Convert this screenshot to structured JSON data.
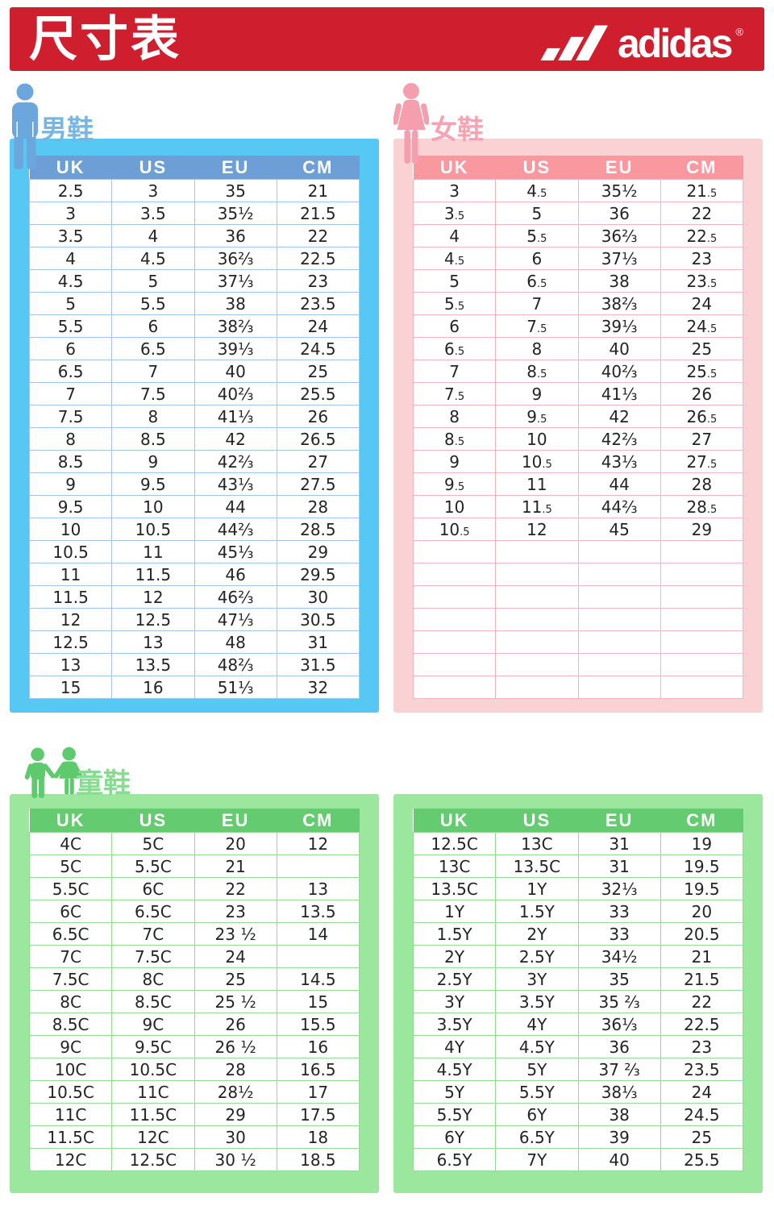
{
  "header": {
    "title": "尺寸表",
    "brand": "adidas",
    "reg_mark": "®"
  },
  "colors": {
    "header_red": "#cf1f2f",
    "men_panel": "#57c7f3",
    "men_table_header": "#6d9fd6",
    "men_accent": "#77b5e3",
    "women_panel": "#fbd2d3",
    "women_table_header": "#f9989f",
    "women_accent": "#f8a3b1",
    "kids_panel": "#9ce79e",
    "kids_table_header": "#65cb70",
    "kids_accent": "#87dc92",
    "cell_text": "#242424"
  },
  "sections": {
    "men": {
      "label": "男鞋",
      "columns": [
        "UK",
        "US",
        "EU",
        "CM"
      ],
      "rows": [
        [
          "2.5",
          "3",
          "35",
          "21"
        ],
        [
          "3",
          "3.5",
          "35½",
          "21.5"
        ],
        [
          "3.5",
          "4",
          "36",
          "22"
        ],
        [
          "4",
          "4.5",
          "36⅔",
          "22.5"
        ],
        [
          "4.5",
          "5",
          "37⅓",
          "23"
        ],
        [
          "5",
          "5.5",
          "38",
          "23.5"
        ],
        [
          "5.5",
          "6",
          "38⅔",
          "24"
        ],
        [
          "6",
          "6.5",
          "39⅓",
          "24.5"
        ],
        [
          "6.5",
          "7",
          "40",
          "25"
        ],
        [
          "7",
          "7.5",
          "40⅔",
          "25.5"
        ],
        [
          "7.5",
          "8",
          "41⅓",
          "26"
        ],
        [
          "8",
          "8.5",
          "42",
          "26.5"
        ],
        [
          "8.5",
          "9",
          "42⅔",
          "27"
        ],
        [
          "9",
          "9.5",
          "43⅓",
          "27.5"
        ],
        [
          "9.5",
          "10",
          "44",
          "28"
        ],
        [
          "10",
          "10.5",
          "44⅔",
          "28.5"
        ],
        [
          "10.5",
          "11",
          "45⅓",
          "29"
        ],
        [
          "11",
          "11.5",
          "46",
          "29.5"
        ],
        [
          "11.5",
          "12",
          "46⅔",
          "30"
        ],
        [
          "12",
          "12.5",
          "47⅓",
          "30.5"
        ],
        [
          "12.5",
          "13",
          "48",
          "31"
        ],
        [
          "13",
          "13.5",
          "48⅔",
          "31.5"
        ],
        [
          "15",
          "16",
          "51⅓",
          "32"
        ]
      ]
    },
    "women": {
      "label": "女鞋",
      "columns": [
        "UK",
        "US",
        "EU",
        "CM"
      ],
      "rows": [
        [
          "3",
          "4.5",
          "35½",
          "21.5"
        ],
        [
          "3.5",
          "5",
          "36",
          "22"
        ],
        [
          "4",
          "5.5",
          "36⅔",
          "22.5"
        ],
        [
          "4.5",
          "6",
          "37⅓",
          "23"
        ],
        [
          "5",
          "6.5",
          "38",
          "23.5"
        ],
        [
          "5.5",
          "7",
          "38⅔",
          "24"
        ],
        [
          "6",
          "7.5",
          "39⅓",
          "24.5"
        ],
        [
          "6.5",
          "8",
          "40",
          "25"
        ],
        [
          "7",
          "8.5",
          "40⅔",
          "25.5"
        ],
        [
          "7.5",
          "9",
          "41⅓",
          "26"
        ],
        [
          "8",
          "9.5",
          "42",
          "26.5"
        ],
        [
          "8.5",
          "10",
          "42⅔",
          "27"
        ],
        [
          "9",
          "10.5",
          "43⅓",
          "27.5"
        ],
        [
          "9.5",
          "11",
          "44",
          "28"
        ],
        [
          "10",
          "11.5",
          "44⅔",
          "28.5"
        ],
        [
          "10.5",
          "12",
          "45",
          "29"
        ],
        [
          "",
          "",
          "",
          ""
        ],
        [
          "",
          "",
          "",
          ""
        ],
        [
          "",
          "",
          "",
          ""
        ],
        [
          "",
          "",
          "",
          ""
        ],
        [
          "",
          "",
          "",
          ""
        ],
        [
          "",
          "",
          "",
          ""
        ],
        [
          "",
          "",
          "",
          ""
        ]
      ]
    },
    "kids": {
      "label": "童鞋",
      "left": {
        "columns": [
          "UK",
          "US",
          "EU",
          "CM"
        ],
        "rows": [
          [
            "4C",
            "5C",
            "20",
            "12"
          ],
          [
            "5C",
            "5.5C",
            "21",
            ""
          ],
          [
            "5.5C",
            "6C",
            "22",
            "13"
          ],
          [
            "6C",
            "6.5C",
            "23",
            "13.5"
          ],
          [
            "6.5C",
            "7C",
            "23 ½",
            "14"
          ],
          [
            "7C",
            "7.5C",
            "24",
            ""
          ],
          [
            "7.5C",
            "8C",
            "25",
            "14.5"
          ],
          [
            "8C",
            "8.5C",
            "25 ½",
            "15"
          ],
          [
            "8.5C",
            "9C",
            "26",
            "15.5"
          ],
          [
            "9C",
            "9.5C",
            "26 ½",
            "16"
          ],
          [
            "10C",
            "10.5C",
            "28",
            "16.5"
          ],
          [
            "10.5C",
            "11C",
            "28½",
            "17"
          ],
          [
            "11C",
            "11.5C",
            "29",
            "17.5"
          ],
          [
            "11.5C",
            "12C",
            "30",
            "18"
          ],
          [
            "12C",
            "12.5C",
            "30 ½",
            "18.5"
          ]
        ]
      },
      "right": {
        "columns": [
          "UK",
          "US",
          "EU",
          "CM"
        ],
        "rows": [
          [
            "12.5C",
            "13C",
            "31",
            "19"
          ],
          [
            "13C",
            "13.5C",
            "31",
            "19.5"
          ],
          [
            "13.5C",
            "1Y",
            "32⅓",
            "19.5"
          ],
          [
            "1Y",
            "1.5Y",
            "33",
            "20"
          ],
          [
            "1.5Y",
            "2Y",
            "33",
            "20.5"
          ],
          [
            "2Y",
            "2.5Y",
            "34½",
            "21"
          ],
          [
            "2.5Y",
            "3Y",
            "35",
            "21.5"
          ],
          [
            "3Y",
            "3.5Y",
            "35 ⅔",
            "22"
          ],
          [
            "3.5Y",
            "4Y",
            "36⅓",
            "22.5"
          ],
          [
            "4Y",
            "4.5Y",
            "36",
            "23"
          ],
          [
            "4.5Y",
            "5Y",
            "37 ⅔",
            "23.5"
          ],
          [
            "5Y",
            "5.5Y",
            "38⅓",
            "24"
          ],
          [
            "5.5Y",
            "6Y",
            "38",
            "24.5"
          ],
          [
            "6Y",
            "6.5Y",
            "39",
            "25"
          ],
          [
            "6.5Y",
            "7Y",
            "40",
            "25.5"
          ]
        ]
      }
    }
  }
}
